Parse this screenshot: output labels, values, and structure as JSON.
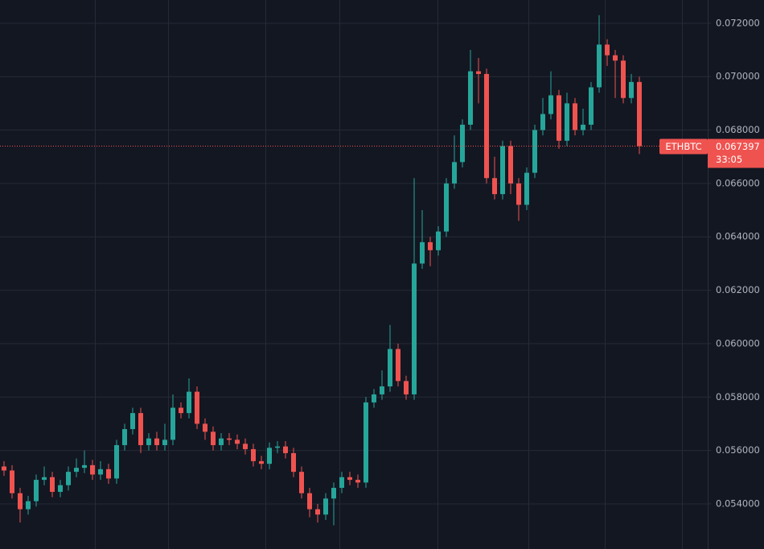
{
  "chart_data": {
    "type": "candlestick",
    "symbol": "ETHBTC",
    "countdown": "33:05",
    "last_price": 0.067397,
    "up_color": "#26a69a",
    "down_color": "#ef5350",
    "grid": true,
    "ylim": [
      0.05231,
      0.07287
    ],
    "yticks": [
      {
        "value": 0.054,
        "label": "0.054000"
      },
      {
        "value": 0.056,
        "label": "0.056000"
      },
      {
        "value": 0.058,
        "label": "0.058000"
      },
      {
        "value": 0.06,
        "label": "0.060000"
      },
      {
        "value": 0.062,
        "label": "0.062000"
      },
      {
        "value": 0.064,
        "label": "0.064000"
      },
      {
        "value": 0.066,
        "label": "0.066000"
      },
      {
        "value": 0.068,
        "label": "0.068000"
      },
      {
        "value": 0.07,
        "label": "0.070000"
      },
      {
        "value": 0.072,
        "label": "0.072000"
      }
    ],
    "open": [
      0.0554,
      0.05525,
      0.0544,
      0.0538,
      0.0541,
      0.0549,
      0.055,
      0.05445,
      0.0547,
      0.0552,
      0.05535,
      0.05545,
      0.0551,
      0.0553,
      0.05495,
      0.0562,
      0.0568,
      0.0574,
      0.0562,
      0.05645,
      0.0562,
      0.0564,
      0.0576,
      0.0574,
      0.0582,
      0.057,
      0.0567,
      0.0562,
      0.05645,
      0.0564,
      0.05625,
      0.05605,
      0.0556,
      0.0555,
      0.0561,
      0.05615,
      0.0559,
      0.0552,
      0.0544,
      0.0538,
      0.0536,
      0.0542,
      0.0546,
      0.055,
      0.0549,
      0.0548,
      0.0578,
      0.0581,
      0.0584,
      0.0598,
      0.0586,
      0.0581,
      0.063,
      0.0638,
      0.0635,
      0.0642,
      0.066,
      0.0668,
      0.0682,
      0.0702,
      0.0701,
      0.0662,
      0.0656,
      0.0674,
      0.066,
      0.0652,
      0.0664,
      0.068,
      0.0686,
      0.0693,
      0.0676,
      0.069,
      0.068,
      0.0682,
      0.0696,
      0.0712,
      0.0708,
      0.0706,
      0.0692,
      0.0698
    ],
    "high": [
      0.0556,
      0.05545,
      0.0546,
      0.0543,
      0.0551,
      0.0554,
      0.0552,
      0.0549,
      0.0554,
      0.0557,
      0.056,
      0.05565,
      0.0556,
      0.0555,
      0.0564,
      0.057,
      0.0576,
      0.0576,
      0.05665,
      0.0567,
      0.057,
      0.0581,
      0.0578,
      0.0587,
      0.0584,
      0.0572,
      0.0569,
      0.05665,
      0.05665,
      0.0566,
      0.05645,
      0.05625,
      0.0558,
      0.0563,
      0.05635,
      0.05635,
      0.0561,
      0.0554,
      0.0546,
      0.054,
      0.0544,
      0.0548,
      0.0552,
      0.0552,
      0.0551,
      0.058,
      0.0583,
      0.059,
      0.0607,
      0.06,
      0.0588,
      0.0662,
      0.065,
      0.064,
      0.0644,
      0.0662,
      0.0678,
      0.0684,
      0.071,
      0.0707,
      0.0703,
      0.067,
      0.0676,
      0.0676,
      0.0662,
      0.0666,
      0.0682,
      0.0692,
      0.0702,
      0.0695,
      0.0694,
      0.0692,
      0.0688,
      0.0698,
      0.0723,
      0.0714,
      0.071,
      0.0708,
      0.0701,
      0.07
    ],
    "low": [
      0.05505,
      0.0542,
      0.0533,
      0.0536,
      0.0539,
      0.0547,
      0.05425,
      0.05425,
      0.0545,
      0.055,
      0.05515,
      0.0549,
      0.0549,
      0.05475,
      0.05475,
      0.056,
      0.0566,
      0.0559,
      0.056,
      0.056,
      0.056,
      0.0562,
      0.0572,
      0.0572,
      0.0568,
      0.0564,
      0.056,
      0.056,
      0.0562,
      0.05605,
      0.05585,
      0.0554,
      0.0553,
      0.0553,
      0.0559,
      0.0557,
      0.055,
      0.0542,
      0.0535,
      0.0533,
      0.0534,
      0.0532,
      0.0544,
      0.0547,
      0.0546,
      0.0546,
      0.0576,
      0.0579,
      0.0582,
      0.0584,
      0.0579,
      0.0579,
      0.0628,
      0.0629,
      0.0633,
      0.064,
      0.0658,
      0.0666,
      0.068,
      0.069,
      0.066,
      0.0654,
      0.0654,
      0.0656,
      0.0646,
      0.065,
      0.0662,
      0.0678,
      0.0684,
      0.0673,
      0.0674,
      0.0678,
      0.0678,
      0.068,
      0.0694,
      0.0704,
      0.0692,
      0.069,
      0.069,
      0.0671
    ],
    "close": [
      0.05525,
      0.0544,
      0.0538,
      0.0541,
      0.0549,
      0.055,
      0.05445,
      0.0547,
      0.0552,
      0.05535,
      0.05545,
      0.0551,
      0.0553,
      0.05495,
      0.0562,
      0.0568,
      0.0574,
      0.0562,
      0.05645,
      0.0562,
      0.0564,
      0.0576,
      0.0574,
      0.0582,
      0.057,
      0.0567,
      0.0562,
      0.05645,
      0.0564,
      0.05625,
      0.05605,
      0.0556,
      0.0555,
      0.0561,
      0.05615,
      0.0559,
      0.0552,
      0.0544,
      0.0538,
      0.0536,
      0.0542,
      0.0546,
      0.055,
      0.0549,
      0.0548,
      0.0578,
      0.0581,
      0.0584,
      0.0598,
      0.0586,
      0.0581,
      0.063,
      0.0638,
      0.0635,
      0.0642,
      0.066,
      0.0668,
      0.0682,
      0.0702,
      0.0701,
      0.0662,
      0.0656,
      0.0674,
      0.066,
      0.0652,
      0.0664,
      0.068,
      0.0686,
      0.0693,
      0.0676,
      0.069,
      0.068,
      0.0682,
      0.0696,
      0.0712,
      0.0708,
      0.0706,
      0.0692,
      0.0698,
      0.067397
    ]
  }
}
